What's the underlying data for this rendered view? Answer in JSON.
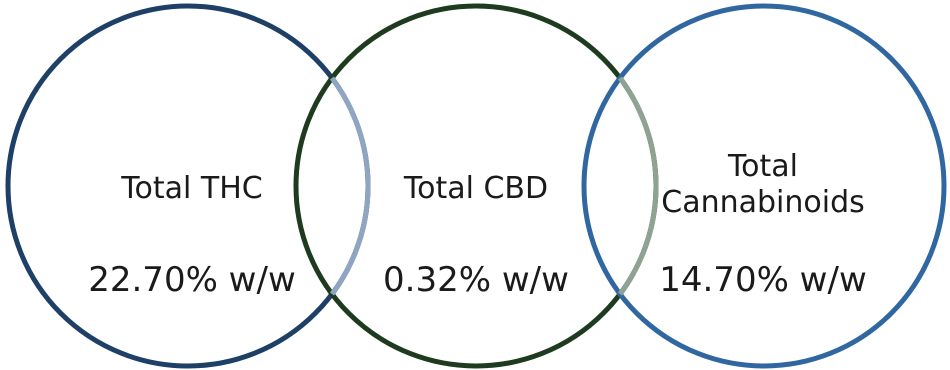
{
  "metrics": [
    {
      "label_lines": [
        "Total THC"
      ],
      "value": "22.70% w/w",
      "ring_color": "#1e3f66"
    },
    {
      "label_lines": [
        "Total CBD"
      ],
      "value": "0.32% w/w",
      "ring_color": "#1e3b1f"
    },
    {
      "label_lines": [
        "Total",
        "Cannabinoids"
      ],
      "value": "14.70% w/w",
      "ring_color": "#3167a0"
    }
  ],
  "overlap_colors": {
    "thc_cbd": "#8fa5c2",
    "cbd_cannabinoids": "#8fa393"
  }
}
